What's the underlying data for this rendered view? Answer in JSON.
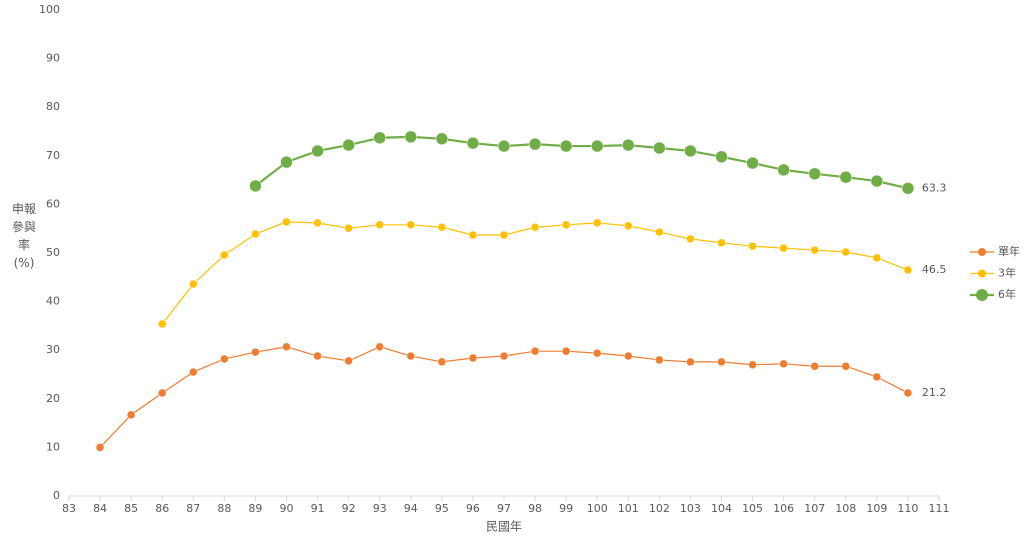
{
  "chart_data": {
    "type": "line",
    "x_label": "民國年",
    "y_label": "申報參與率(%)",
    "x": [
      84,
      85,
      86,
      87,
      88,
      89,
      90,
      91,
      92,
      93,
      94,
      95,
      96,
      97,
      98,
      99,
      100,
      101,
      102,
      103,
      104,
      105,
      106,
      107,
      108,
      109,
      110
    ],
    "xlim": [
      83,
      111
    ],
    "xticks": [
      83,
      84,
      85,
      86,
      87,
      88,
      89,
      90,
      91,
      92,
      93,
      94,
      95,
      96,
      97,
      98,
      99,
      100,
      101,
      102,
      103,
      104,
      105,
      106,
      107,
      108,
      109,
      110,
      111
    ],
    "ylim": [
      0,
      100
    ],
    "yticks": [
      0,
      10,
      20,
      30,
      40,
      50,
      60,
      70,
      80,
      90,
      100
    ],
    "legend": "right",
    "series": [
      {
        "name": "單年",
        "color": "#ed7d31",
        "values": [
          10,
          16.7,
          21.2,
          25.5,
          28.2,
          29.6,
          30.7,
          28.8,
          27.8,
          30.7,
          28.8,
          27.6,
          28.4,
          28.8,
          29.8,
          29.8,
          29.4,
          28.8,
          28.0,
          27.6,
          27.6,
          27.0,
          27.2,
          26.7,
          26.7,
          24.5,
          21.2
        ]
      },
      {
        "name": "3年",
        "color": "#ffc000",
        "values": [
          null,
          null,
          35.4,
          43.6,
          49.6,
          53.9,
          56.4,
          56.2,
          55.1,
          55.8,
          55.8,
          55.3,
          53.7,
          53.7,
          55.3,
          55.8,
          56.2,
          55.6,
          54.3,
          52.9,
          52.1,
          51.4,
          51.0,
          50.6,
          50.2,
          49.0,
          46.5
        ]
      },
      {
        "name": "6年",
        "color": "#70ad47",
        "values": [
          null,
          null,
          null,
          null,
          null,
          63.8,
          68.7,
          71.0,
          72.2,
          73.7,
          73.9,
          73.5,
          72.6,
          72.0,
          72.4,
          72.0,
          72.0,
          72.2,
          71.6,
          71.0,
          69.8,
          68.5,
          67.1,
          66.3,
          65.6,
          64.8,
          63.3
        ]
      }
    ]
  }
}
